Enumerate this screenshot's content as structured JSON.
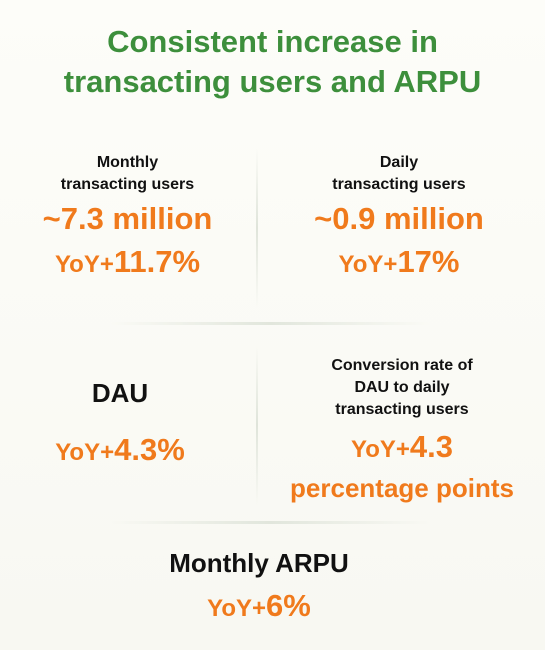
{
  "title": {
    "line1": "Consistent increase in",
    "line2": "transacting users and ARPU"
  },
  "monthly_users": {
    "label_line1": "Monthly",
    "label_line2": "transacting users",
    "value": "~7.3 million",
    "yoy_prefix": "YoY+",
    "yoy_value": "11.7%"
  },
  "daily_users": {
    "label_line1": "Daily",
    "label_line2": "transacting users",
    "value": "~0.9 million",
    "yoy_prefix": "YoY+",
    "yoy_value": "17%"
  },
  "dau": {
    "label": "DAU",
    "yoy_prefix": "YoY+",
    "yoy_value": "4.3%"
  },
  "conversion": {
    "label_line1": "Conversion rate of",
    "label_line2": "DAU to daily",
    "label_line3": "transacting users",
    "yoy_prefix": "YoY+",
    "yoy_value": "4.3",
    "yoy_line2": "percentage points"
  },
  "arpu": {
    "label": "Monthly ARPU",
    "yoy_prefix": "YoY+",
    "yoy_value": "6%"
  },
  "colors": {
    "title_green": "#3d8f3c",
    "accent_orange": "#f07a1c",
    "label_black": "#111111"
  }
}
